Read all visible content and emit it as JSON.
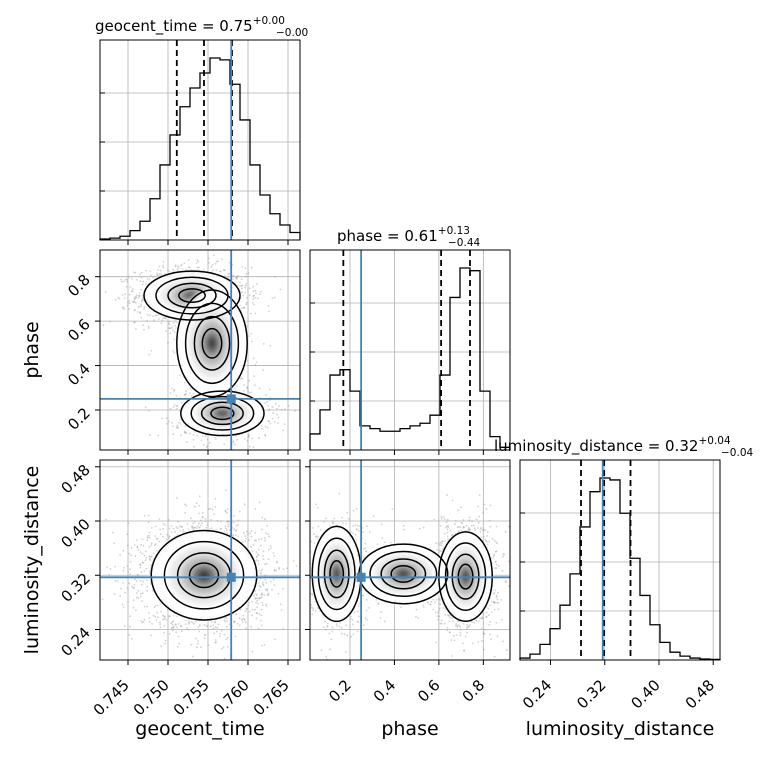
{
  "chart_data": {
    "type": "corner",
    "parameters": [
      "geocent_time",
      "phase",
      "luminosity_distance"
    ],
    "titles": [
      {
        "name": "geocent_time",
        "eq": " = 0.75",
        "plus": "+0.00",
        "minus": "−0.00"
      },
      {
        "name": "phase",
        "eq": " = 0.61",
        "plus": "+0.13",
        "minus": "−0.44"
      },
      {
        "name": "luminosity_distance",
        "eq": " = 0.32",
        "plus": "+0.04",
        "minus": "−0.04"
      }
    ],
    "axis_labels": {
      "x": [
        "geocent_time",
        "phase",
        "luminosity_distance"
      ],
      "y": [
        "phase",
        "luminosity_distance"
      ]
    },
    "ranges": {
      "geocent_time": [
        0.7415,
        0.7665
      ],
      "phase": [
        0.02,
        0.92
      ],
      "luminosity_distance": [
        0.195,
        0.49
      ]
    },
    "ticks": {
      "geocent_time": [
        "0.745",
        "0.750",
        "0.755",
        "0.760",
        "0.765"
      ],
      "phase": [
        "0.2",
        "0.4",
        "0.6",
        "0.8"
      ],
      "luminosity_distance": [
        "0.24",
        "0.32",
        "0.40",
        "0.48"
      ]
    },
    "truths": {
      "geocent_time": 0.7579,
      "phase": 0.25,
      "luminosity_distance": 0.317
    },
    "quantiles": {
      "geocent_time": [
        0.7511,
        0.7545,
        0.758
      ],
      "phase": [
        0.17,
        0.61,
        0.74
      ],
      "luminosity_distance": [
        0.285,
        0.319,
        0.358
      ]
    },
    "histograms": {
      "geocent_time": {
        "edges_start": 0.7415,
        "bin_width": 0.00125,
        "counts": [
          0.5,
          1,
          2,
          5,
          10,
          22,
          40,
          56,
          71,
          81,
          89,
          97,
          96,
          83,
          64,
          40,
          24,
          14,
          8,
          4
        ]
      },
      "phase": {
        "edges_start": 0.02,
        "bin_width": 0.045,
        "counts": [
          6,
          15,
          28,
          30,
          22,
          9,
          8,
          7,
          7,
          8,
          9,
          10,
          13,
          28,
          57,
          68,
          67,
          22,
          5,
          1
        ]
      },
      "luminosity_distance": {
        "edges_start": 0.195,
        "bin_width": 0.01475,
        "counts": [
          1,
          3,
          8,
          16,
          28,
          44,
          68,
          86,
          93,
          92,
          75,
          52,
          33,
          18,
          9,
          4,
          2,
          1,
          0.5,
          0.3
        ]
      }
    },
    "grid": true
  }
}
